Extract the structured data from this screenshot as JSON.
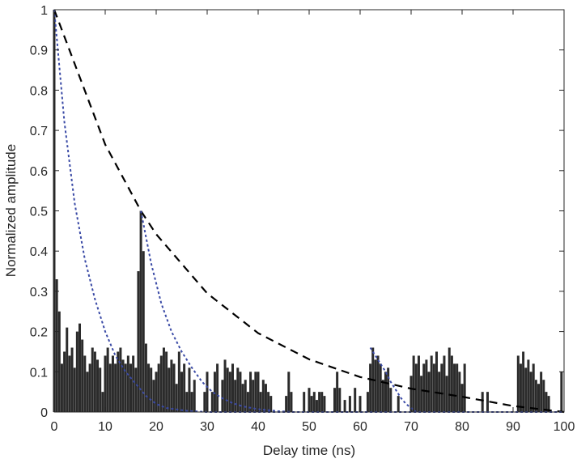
{
  "chart_data": {
    "type": "bar",
    "xlabel": "Delay time (ns)",
    "ylabel": "Normalized amplitude",
    "xlim": [
      0,
      100
    ],
    "ylim": [
      0,
      1
    ],
    "xticks": [
      0,
      10,
      20,
      30,
      40,
      50,
      60,
      70,
      80,
      90,
      100
    ],
    "yticks": [
      0,
      0.1,
      0.2,
      0.3,
      0.4,
      0.5,
      0.6,
      0.7,
      0.8,
      0.9,
      1
    ],
    "xtick_labels": [
      "0",
      "10",
      "20",
      "30",
      "40",
      "50",
      "60",
      "70",
      "80",
      "90",
      "100"
    ],
    "ytick_labels": [
      "0",
      "0.1",
      "0.2",
      "0.3",
      "0.4",
      "0.5",
      "0.6",
      "0.7",
      "0.8",
      "0.9",
      "1"
    ],
    "grid": false,
    "bars": {
      "color": "#2b2b2b",
      "x": [
        0,
        0.5,
        1,
        1.5,
        2,
        2.5,
        3,
        3.5,
        4,
        4.5,
        5,
        5.5,
        6,
        6.5,
        7,
        7.5,
        8,
        8.5,
        9,
        9.5,
        10,
        10.5,
        11,
        11.5,
        12,
        12.5,
        13,
        13.5,
        14,
        14.5,
        15,
        15.5,
        16,
        16.5,
        17,
        17.5,
        18,
        18.5,
        19,
        19.5,
        20,
        20.5,
        21,
        21.5,
        22,
        22.5,
        23,
        23.5,
        24,
        24.5,
        25,
        25.5,
        26,
        26.5,
        27,
        27.5,
        29.5,
        30,
        31,
        31.5,
        32,
        33,
        33.5,
        34,
        34.5,
        35,
        35.5,
        36,
        36.5,
        37,
        37.5,
        38,
        38.5,
        39,
        39.5,
        40,
        40.5,
        41,
        41.5,
        42,
        42.5,
        45.5,
        46,
        46.5,
        49,
        50,
        50.5,
        51,
        51.5,
        52,
        52.5,
        53,
        55,
        55.5,
        56,
        57,
        58,
        59,
        60,
        61.5,
        62,
        62.5,
        63,
        63.5,
        64,
        64.5,
        65,
        65.5,
        66,
        67.5,
        70,
        70.5,
        71,
        71.5,
        72,
        72.5,
        73,
        73.5,
        74,
        74.5,
        75,
        75.5,
        76,
        76.5,
        77,
        77.5,
        78,
        78.5,
        79,
        79.5,
        80,
        80.5,
        84,
        85,
        91,
        91.5,
        92,
        92.5,
        93,
        93.5,
        94,
        94.5,
        95,
        95.5,
        96,
        96.5,
        97,
        99.5
      ],
      "values": [
        1.0,
        0.33,
        0.25,
        0.12,
        0.15,
        0.21,
        0.14,
        0.16,
        0.11,
        0.2,
        0.22,
        0.18,
        0.14,
        0.1,
        0.12,
        0.16,
        0.15,
        0.13,
        0.11,
        0.05,
        0.14,
        0.16,
        0.12,
        0.14,
        0.12,
        0.15,
        0.16,
        0.13,
        0.12,
        0.14,
        0.12,
        0.14,
        0.11,
        0.35,
        0.5,
        0.4,
        0.17,
        0.12,
        0.11,
        0.08,
        0.1,
        0.12,
        0.14,
        0.16,
        0.15,
        0.11,
        0.13,
        0.12,
        0.07,
        0.15,
        0.1,
        0.12,
        0.05,
        0.11,
        0.05,
        0.08,
        0.05,
        0.1,
        0.05,
        0.1,
        0.12,
        0.08,
        0.13,
        0.11,
        0.1,
        0.12,
        0.08,
        0.11,
        0.1,
        0.07,
        0.08,
        0.05,
        0.1,
        0.08,
        0.1,
        0.1,
        0.05,
        0.08,
        0.07,
        0.05,
        0.04,
        0.04,
        0.1,
        0.05,
        0.05,
        0.06,
        0.04,
        0.05,
        0.03,
        0.05,
        0.05,
        0.04,
        0.06,
        0.1,
        0.06,
        0.03,
        0.04,
        0.06,
        0.04,
        0.05,
        0.12,
        0.16,
        0.13,
        0.14,
        0.12,
        0.08,
        0.1,
        0.11,
        0.06,
        0.04,
        0.09,
        0.14,
        0.12,
        0.14,
        0.09,
        0.12,
        0.13,
        0.1,
        0.14,
        0.12,
        0.15,
        0.1,
        0.12,
        0.14,
        0.09,
        0.16,
        0.14,
        0.12,
        0.12,
        0.1,
        0.07,
        0.12,
        0.05,
        0.05,
        0.14,
        0.12,
        0.15,
        0.11,
        0.13,
        0.1,
        0.12,
        0.08,
        0.07,
        0.1,
        0.08,
        0.05,
        0.04,
        0.1
      ]
    },
    "lines": [
      {
        "style": "dashed",
        "color": "#000000",
        "points": [
          [
            0,
            1.0
          ],
          [
            10,
            0.665
          ],
          [
            17,
            0.5
          ],
          [
            20,
            0.442
          ],
          [
            30,
            0.295
          ],
          [
            40,
            0.196
          ],
          [
            50,
            0.131
          ],
          [
            60,
            0.087
          ],
          [
            70,
            0.058
          ],
          [
            80,
            0.038
          ],
          [
            90,
            0.015
          ],
          [
            100,
            0.0
          ]
        ]
      },
      {
        "style": "dotted",
        "color": "#3a4aa6",
        "points": [
          [
            0,
            1.0
          ],
          [
            2,
            0.72
          ],
          [
            4,
            0.52
          ],
          [
            6,
            0.38
          ],
          [
            8,
            0.28
          ],
          [
            10,
            0.2
          ],
          [
            12,
            0.14
          ],
          [
            14,
            0.1
          ],
          [
            16,
            0.07
          ],
          [
            18,
            0.04
          ],
          [
            20,
            0.02
          ],
          [
            22,
            0.01
          ],
          [
            26,
            0.003
          ],
          [
            30,
            0.0
          ],
          [
            100,
            0.0
          ]
        ]
      },
      {
        "style": "dotted",
        "color": "#3a4aa6",
        "points": [
          [
            17,
            0.5
          ],
          [
            19,
            0.37
          ],
          [
            21,
            0.27
          ],
          [
            23,
            0.2
          ],
          [
            25,
            0.15
          ],
          [
            27,
            0.11
          ],
          [
            29,
            0.075
          ],
          [
            31,
            0.05
          ],
          [
            33,
            0.034
          ],
          [
            35,
            0.022
          ],
          [
            37,
            0.014
          ],
          [
            40,
            0.007
          ],
          [
            44,
            0.002
          ],
          [
            47,
            0.0
          ]
        ]
      },
      {
        "style": "dotted",
        "color": "#3a4aa6",
        "points": [
          [
            62,
            0.16
          ],
          [
            63,
            0.14
          ],
          [
            64,
            0.12
          ],
          [
            65,
            0.1
          ],
          [
            66,
            0.075
          ],
          [
            67,
            0.055
          ],
          [
            68,
            0.035
          ],
          [
            69,
            0.02
          ],
          [
            70,
            0.01
          ],
          [
            71,
            0.0
          ]
        ]
      }
    ]
  }
}
